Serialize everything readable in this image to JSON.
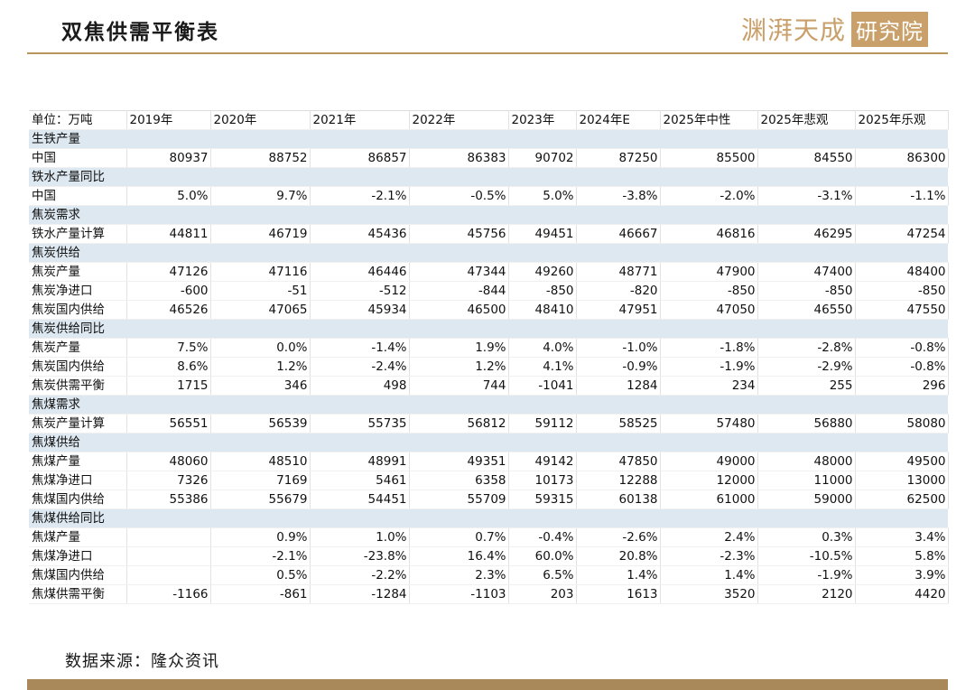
{
  "header": {
    "title": "双焦供需平衡表",
    "logo_text": "渊湃天成",
    "logo_box": "研究院"
  },
  "table": {
    "columns": [
      "单位：万吨",
      "2019年",
      "2020年",
      "2021年",
      "2022年",
      "2023年",
      "2024年E",
      "2025年中性",
      "2025年悲观",
      "2025年乐观"
    ],
    "rows": [
      {
        "section": "生铁产量"
      },
      {
        "label": "中国",
        "values": [
          "80937",
          "88752",
          "86857",
          "86383",
          "90702",
          "87250",
          "85500",
          "84550",
          "86300"
        ]
      },
      {
        "section": "铁水产量同比"
      },
      {
        "label": "中国",
        "values": [
          "5.0%",
          "9.7%",
          "-2.1%",
          "-0.5%",
          "5.0%",
          "-3.8%",
          "-2.0%",
          "-3.1%",
          "-1.1%"
        ]
      },
      {
        "section": "焦炭需求"
      },
      {
        "label": "铁水产量计算",
        "values": [
          "44811",
          "46719",
          "45436",
          "45756",
          "49451",
          "46667",
          "46816",
          "46295",
          "47254"
        ]
      },
      {
        "section": "焦炭供给"
      },
      {
        "label": "焦炭产量",
        "values": [
          "47126",
          "47116",
          "46446",
          "47344",
          "49260",
          "48771",
          "47900",
          "47400",
          "48400"
        ]
      },
      {
        "label": "焦炭净进口",
        "values": [
          "-600",
          "-51",
          "-512",
          "-844",
          "-850",
          "-820",
          "-850",
          "-850",
          "-850"
        ]
      },
      {
        "label": "焦炭国内供给",
        "values": [
          "46526",
          "47065",
          "45934",
          "46500",
          "48410",
          "47951",
          "47050",
          "46550",
          "47550"
        ]
      },
      {
        "section": "焦炭供给同比"
      },
      {
        "label": "焦炭产量",
        "values": [
          "7.5%",
          "0.0%",
          "-1.4%",
          "1.9%",
          "4.0%",
          "-1.0%",
          "-1.8%",
          "-2.8%",
          "-0.8%"
        ]
      },
      {
        "label": "焦炭国内供给",
        "values": [
          "8.6%",
          "1.2%",
          "-2.4%",
          "1.2%",
          "4.1%",
          "-0.9%",
          "-1.9%",
          "-2.9%",
          "-0.8%"
        ]
      },
      {
        "label": "焦炭供需平衡",
        "values": [
          "1715",
          "346",
          "498",
          "744",
          "-1041",
          "1284",
          "234",
          "255",
          "296"
        ]
      },
      {
        "section": "焦煤需求"
      },
      {
        "label": "焦炭产量计算",
        "values": [
          "56551",
          "56539",
          "55735",
          "56812",
          "59112",
          "58525",
          "57480",
          "56880",
          "58080"
        ]
      },
      {
        "section": "焦煤供给"
      },
      {
        "label": "焦煤产量",
        "values": [
          "48060",
          "48510",
          "48991",
          "49351",
          "49142",
          "47850",
          "49000",
          "48000",
          "49500"
        ]
      },
      {
        "label": "焦煤净进口",
        "values": [
          "7326",
          "7169",
          "5461",
          "6358",
          "10173",
          "12288",
          "12000",
          "11000",
          "13000"
        ]
      },
      {
        "label": "焦煤国内供给",
        "values": [
          "55386",
          "55679",
          "54451",
          "55709",
          "59315",
          "60138",
          "61000",
          "59000",
          "62500"
        ]
      },
      {
        "section": "焦煤供给同比"
      },
      {
        "label": "焦煤产量",
        "values": [
          "",
          "0.9%",
          "1.0%",
          "0.7%",
          "-0.4%",
          "-2.6%",
          "2.4%",
          "0.3%",
          "3.4%"
        ]
      },
      {
        "label": "焦煤净进口",
        "values": [
          "",
          "-2.1%",
          "-23.8%",
          "16.4%",
          "60.0%",
          "20.8%",
          "-2.3%",
          "-10.5%",
          "5.8%"
        ]
      },
      {
        "label": "焦煤国内供给",
        "values": [
          "",
          "0.5%",
          "-2.2%",
          "2.3%",
          "6.5%",
          "1.4%",
          "1.4%",
          "-1.9%",
          "3.9%"
        ]
      },
      {
        "label": "焦煤供需平衡",
        "values": [
          "-1166",
          "-861",
          "-1284",
          "-1103",
          "203",
          "1613",
          "3520",
          "2120",
          "4420"
        ]
      }
    ]
  },
  "footer": {
    "source": "数据来源：隆众资讯"
  },
  "colors": {
    "accent_gold": "#b8955c",
    "section_bg": "#dde8f1"
  }
}
